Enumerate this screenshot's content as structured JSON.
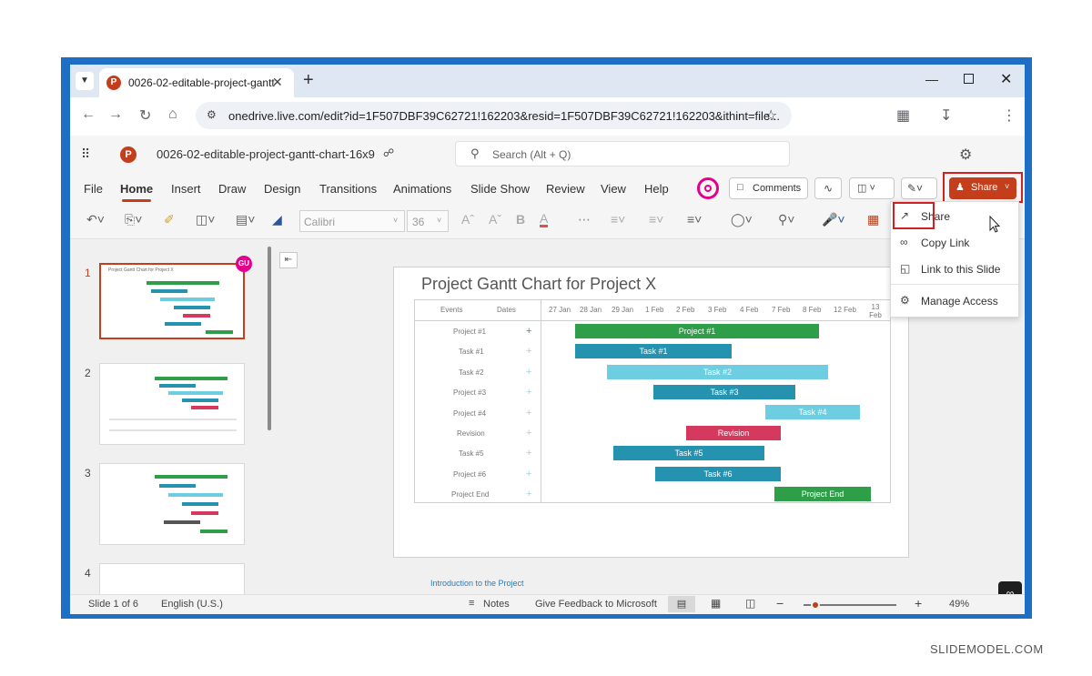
{
  "browser": {
    "tab_title": "0026-02-editable-project-gantt",
    "tab_app_icon": "P",
    "url": "onedrive.live.com/edit?id=1F507DBF39C62721!162203&resid=1F507DBF39C62721!162203&ithint=file...",
    "new_tab": "+"
  },
  "app": {
    "file_name": "0026-02-editable-project-gantt-chart-16x9",
    "search_placeholder": "Search (Alt + Q)",
    "ribbon_tabs": [
      "File",
      "Home",
      "Insert",
      "Draw",
      "Design",
      "Transitions",
      "Animations",
      "Slide Show",
      "Review",
      "View",
      "Help"
    ],
    "active_tab": "Home",
    "comments_label": "Comments",
    "share_label": "Share",
    "font_name": "Calibri",
    "font_size": "36",
    "record_color": "#e3008c",
    "share_color": "#c43e1c"
  },
  "share_menu": {
    "items": [
      {
        "label": "Share",
        "icon": "share-icon"
      },
      {
        "label": "Copy Link",
        "icon": "link-icon"
      },
      {
        "label": "Link to this Slide",
        "icon": "slide-link-icon"
      },
      {
        "label": "Manage Access",
        "icon": "gear-icon"
      }
    ]
  },
  "thumbnails": {
    "numbers": [
      "1",
      "2",
      "3",
      "4"
    ],
    "user_badge": "GU",
    "thumb1_title": "Project Gantt Chart for Project X"
  },
  "slide": {
    "title": "Project Gantt Chart for Project X",
    "col_events": "Events",
    "col_dates": "Dates",
    "dates": [
      "27 Jan",
      "28 Jan",
      "29 Jan",
      "1 Feb",
      "2 Feb",
      "3 Feb",
      "4 Feb",
      "7 Feb",
      "8 Feb",
      "12 Feb",
      "13 Feb"
    ],
    "rows": [
      "Project #1",
      "Task #1",
      "Task #2",
      "Project #3",
      "Project #4",
      "Revision",
      "Task #5",
      "Project #6",
      "Project End"
    ],
    "bars": [
      {
        "label": "Project #1",
        "color": "#2e9e48"
      },
      {
        "label": "Task #1",
        "color": "#2592b0"
      },
      {
        "label": "Task #2",
        "color": "#6ccee0"
      },
      {
        "label": "Task #3",
        "color": "#2592b0"
      },
      {
        "label": "Task #4",
        "color": "#6ccee0"
      },
      {
        "label": "Revision",
        "color": "#d6395e"
      },
      {
        "label": "Task #5",
        "color": "#2592b0"
      },
      {
        "label": "Task #6",
        "color": "#2592b0"
      },
      {
        "label": "Project End",
        "color": "#2e9e48"
      }
    ],
    "link_text": "Introduction to the Project"
  },
  "status": {
    "slide_counter": "Slide 1 of 6",
    "language": "English (U.S.)",
    "notes": "Notes",
    "feedback": "Give Feedback to Microsoft",
    "zoom": "49%"
  },
  "watermark": "SLIDEMODEL.COM"
}
